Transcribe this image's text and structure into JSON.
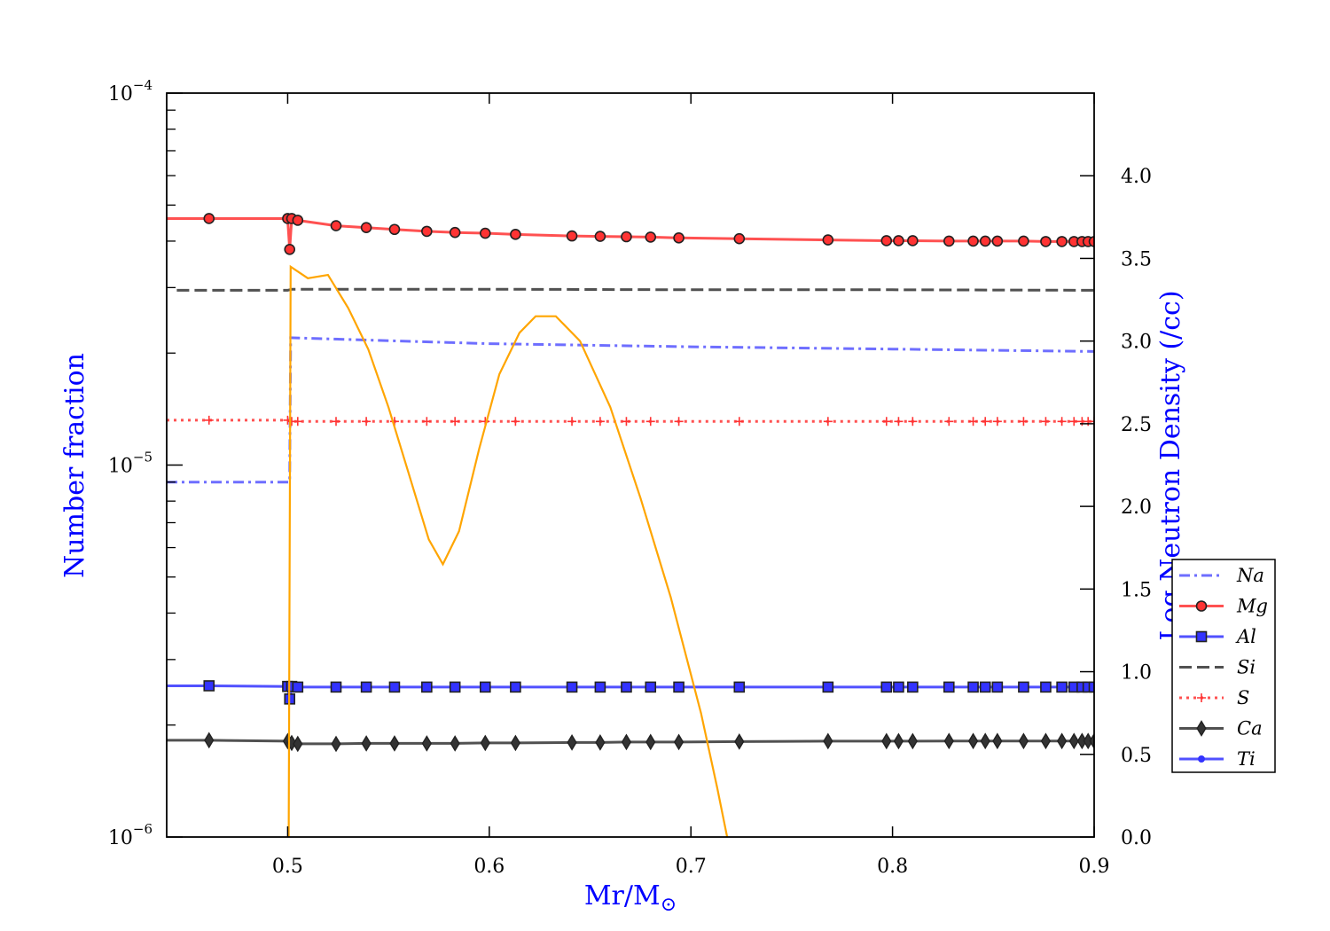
{
  "chart_data": {
    "type": "line",
    "xlabel": "Mr/M",
    "xlabel_sub": "⊙",
    "ylabel_left": "Number fraction",
    "ylabel_right": "Log Neutron Density (/cc)",
    "xlim": [
      0.44,
      0.9
    ],
    "ylim_left": [
      1e-06,
      0.0001
    ],
    "ylim_right": [
      0.0,
      4.5
    ],
    "left_scale": "log",
    "x_ticks": [
      "0.5",
      "0.6",
      "0.7",
      "0.8",
      "0.9"
    ],
    "x_tick_values": [
      0.5,
      0.6,
      0.7,
      0.8,
      0.9
    ],
    "left_ticks": [
      {
        "value": 1e-06,
        "base": "10",
        "exp": "−6"
      },
      {
        "value": 1e-05,
        "base": "10",
        "exp": "−5"
      },
      {
        "value": 0.0001,
        "base": "10",
        "exp": "−4"
      }
    ],
    "right_ticks": [
      "0.0",
      "0.5",
      "1.0",
      "1.5",
      "2.0",
      "2.5",
      "3.0",
      "3.5",
      "4.0"
    ],
    "right_tick_values": [
      0.0,
      0.5,
      1.0,
      1.5,
      2.0,
      2.5,
      3.0,
      3.5,
      4.0
    ],
    "legend_placement": "lower-right",
    "grid": false,
    "colors": {
      "red": "#ff3333",
      "blue": "#3333ff",
      "black": "#333333",
      "orange": "#ffa500"
    },
    "series": [
      {
        "name": "Na",
        "style": "dashdot",
        "color": "#5555ff",
        "marker": "none",
        "points": [
          [
            0.44,
            9e-06
          ],
          [
            0.501,
            9e-06
          ],
          [
            0.5015,
            2.2e-05
          ],
          [
            0.6,
            2.12e-05
          ],
          [
            0.7,
            2.08e-05
          ],
          [
            0.8,
            2.05e-05
          ],
          [
            0.9,
            2.02e-05
          ]
        ]
      },
      {
        "name": "Mg",
        "style": "solid",
        "color": "#ff3333",
        "marker": "circle",
        "points": [
          [
            0.44,
            4.6e-05
          ],
          [
            0.461,
            4.6e-05
          ],
          [
            0.5,
            4.6e-05
          ],
          [
            0.501,
            3.8e-05
          ],
          [
            0.502,
            4.6e-05
          ],
          [
            0.505,
            4.55e-05
          ],
          [
            0.524,
            4.4e-05
          ],
          [
            0.539,
            4.35e-05
          ],
          [
            0.553,
            4.3e-05
          ],
          [
            0.569,
            4.25e-05
          ],
          [
            0.583,
            4.22e-05
          ],
          [
            0.598,
            4.2e-05
          ],
          [
            0.613,
            4.17e-05
          ],
          [
            0.641,
            4.13e-05
          ],
          [
            0.655,
            4.12e-05
          ],
          [
            0.668,
            4.11e-05
          ],
          [
            0.68,
            4.1e-05
          ],
          [
            0.694,
            4.08e-05
          ],
          [
            0.724,
            4.06e-05
          ],
          [
            0.768,
            4.03e-05
          ],
          [
            0.797,
            4.01e-05
          ],
          [
            0.803,
            4.01e-05
          ],
          [
            0.81,
            4.01e-05
          ],
          [
            0.828,
            4e-05
          ],
          [
            0.84,
            4e-05
          ],
          [
            0.846,
            4e-05
          ],
          [
            0.852,
            4e-05
          ],
          [
            0.865,
            4e-05
          ],
          [
            0.876,
            3.99e-05
          ],
          [
            0.884,
            3.99e-05
          ],
          [
            0.89,
            3.99e-05
          ],
          [
            0.894,
            3.99e-05
          ],
          [
            0.897,
            3.99e-05
          ],
          [
            0.9,
            3.99e-05
          ]
        ]
      },
      {
        "name": "Al",
        "style": "solid",
        "color": "#3333ff",
        "marker": "square",
        "points": [
          [
            0.44,
            2.55e-06
          ],
          [
            0.461,
            2.55e-06
          ],
          [
            0.5,
            2.54e-06
          ],
          [
            0.501,
            2.35e-06
          ],
          [
            0.502,
            2.54e-06
          ],
          [
            0.505,
            2.53e-06
          ],
          [
            0.524,
            2.53e-06
          ],
          [
            0.539,
            2.53e-06
          ],
          [
            0.553,
            2.53e-06
          ],
          [
            0.569,
            2.53e-06
          ],
          [
            0.583,
            2.53e-06
          ],
          [
            0.598,
            2.53e-06
          ],
          [
            0.613,
            2.53e-06
          ],
          [
            0.641,
            2.53e-06
          ],
          [
            0.655,
            2.53e-06
          ],
          [
            0.668,
            2.53e-06
          ],
          [
            0.68,
            2.53e-06
          ],
          [
            0.694,
            2.53e-06
          ],
          [
            0.724,
            2.53e-06
          ],
          [
            0.768,
            2.53e-06
          ],
          [
            0.797,
            2.53e-06
          ],
          [
            0.803,
            2.53e-06
          ],
          [
            0.81,
            2.53e-06
          ],
          [
            0.828,
            2.53e-06
          ],
          [
            0.84,
            2.53e-06
          ],
          [
            0.846,
            2.53e-06
          ],
          [
            0.852,
            2.53e-06
          ],
          [
            0.865,
            2.53e-06
          ],
          [
            0.876,
            2.53e-06
          ],
          [
            0.884,
            2.53e-06
          ],
          [
            0.89,
            2.53e-06
          ],
          [
            0.894,
            2.53e-06
          ],
          [
            0.897,
            2.53e-06
          ],
          [
            0.9,
            2.53e-06
          ]
        ]
      },
      {
        "name": "Si",
        "style": "dashed",
        "color": "#333333",
        "marker": "none",
        "points": [
          [
            0.445,
            2.95e-05
          ],
          [
            0.5,
            2.95e-05
          ],
          [
            0.502,
            2.97e-05
          ],
          [
            0.6,
            2.97e-05
          ],
          [
            0.7,
            2.96e-05
          ],
          [
            0.8,
            2.96e-05
          ],
          [
            0.9,
            2.95e-05
          ]
        ]
      },
      {
        "name": "S",
        "style": "dotted",
        "color": "#ff3333",
        "marker": "plus",
        "points": [
          [
            0.44,
            1.32e-05
          ],
          [
            0.461,
            1.32e-05
          ],
          [
            0.5,
            1.32e-05
          ],
          [
            0.502,
            1.31e-05
          ],
          [
            0.505,
            1.31e-05
          ],
          [
            0.524,
            1.31e-05
          ],
          [
            0.539,
            1.31e-05
          ],
          [
            0.553,
            1.31e-05
          ],
          [
            0.569,
            1.31e-05
          ],
          [
            0.583,
            1.31e-05
          ],
          [
            0.598,
            1.31e-05
          ],
          [
            0.613,
            1.31e-05
          ],
          [
            0.641,
            1.31e-05
          ],
          [
            0.655,
            1.31e-05
          ],
          [
            0.668,
            1.31e-05
          ],
          [
            0.68,
            1.31e-05
          ],
          [
            0.694,
            1.31e-05
          ],
          [
            0.724,
            1.31e-05
          ],
          [
            0.768,
            1.31e-05
          ],
          [
            0.797,
            1.31e-05
          ],
          [
            0.803,
            1.31e-05
          ],
          [
            0.81,
            1.31e-05
          ],
          [
            0.828,
            1.31e-05
          ],
          [
            0.84,
            1.31e-05
          ],
          [
            0.846,
            1.31e-05
          ],
          [
            0.852,
            1.31e-05
          ],
          [
            0.865,
            1.31e-05
          ],
          [
            0.876,
            1.31e-05
          ],
          [
            0.884,
            1.31e-05
          ],
          [
            0.89,
            1.31e-05
          ],
          [
            0.894,
            1.31e-05
          ],
          [
            0.897,
            1.31e-05
          ],
          [
            0.9,
            1.31e-05
          ]
        ]
      },
      {
        "name": "Ca",
        "style": "solid",
        "color": "#333333",
        "marker": "diamond",
        "points": [
          [
            0.44,
            1.82e-06
          ],
          [
            0.461,
            1.82e-06
          ],
          [
            0.5,
            1.81e-06
          ],
          [
            0.502,
            1.79e-06
          ],
          [
            0.505,
            1.78e-06
          ],
          [
            0.524,
            1.78e-06
          ],
          [
            0.539,
            1.785e-06
          ],
          [
            0.553,
            1.785e-06
          ],
          [
            0.569,
            1.785e-06
          ],
          [
            0.583,
            1.785e-06
          ],
          [
            0.598,
            1.79e-06
          ],
          [
            0.613,
            1.79e-06
          ],
          [
            0.641,
            1.795e-06
          ],
          [
            0.655,
            1.795e-06
          ],
          [
            0.668,
            1.8e-06
          ],
          [
            0.68,
            1.8e-06
          ],
          [
            0.694,
            1.8e-06
          ],
          [
            0.724,
            1.805e-06
          ],
          [
            0.768,
            1.81e-06
          ],
          [
            0.797,
            1.81e-06
          ],
          [
            0.803,
            1.81e-06
          ],
          [
            0.81,
            1.81e-06
          ],
          [
            0.828,
            1.812e-06
          ],
          [
            0.84,
            1.812e-06
          ],
          [
            0.846,
            1.812e-06
          ],
          [
            0.852,
            1.812e-06
          ],
          [
            0.865,
            1.812e-06
          ],
          [
            0.876,
            1.812e-06
          ],
          [
            0.884,
            1.812e-06
          ],
          [
            0.89,
            1.812e-06
          ],
          [
            0.894,
            1.812e-06
          ],
          [
            0.897,
            1.812e-06
          ],
          [
            0.9,
            1.812e-06
          ]
        ]
      },
      {
        "name": "Ti",
        "style": "solid",
        "color": "#3333ff",
        "marker": "dot",
        "points": []
      }
    ],
    "neutron_density": {
      "axis": "right",
      "color": "#ffa500",
      "points": [
        [
          0.5005,
          0.0
        ],
        [
          0.5015,
          3.45
        ],
        [
          0.51,
          3.38
        ],
        [
          0.52,
          3.4
        ],
        [
          0.53,
          3.2
        ],
        [
          0.54,
          2.95
        ],
        [
          0.55,
          2.6
        ],
        [
          0.56,
          2.2
        ],
        [
          0.57,
          1.8
        ],
        [
          0.577,
          1.65
        ],
        [
          0.585,
          1.85
        ],
        [
          0.595,
          2.35
        ],
        [
          0.605,
          2.8
        ],
        [
          0.615,
          3.05
        ],
        [
          0.623,
          3.15
        ],
        [
          0.633,
          3.15
        ],
        [
          0.645,
          3.0
        ],
        [
          0.66,
          2.6
        ],
        [
          0.675,
          2.05
        ],
        [
          0.69,
          1.45
        ],
        [
          0.705,
          0.75
        ],
        [
          0.713,
          0.3
        ],
        [
          0.718,
          0.0
        ]
      ]
    }
  }
}
